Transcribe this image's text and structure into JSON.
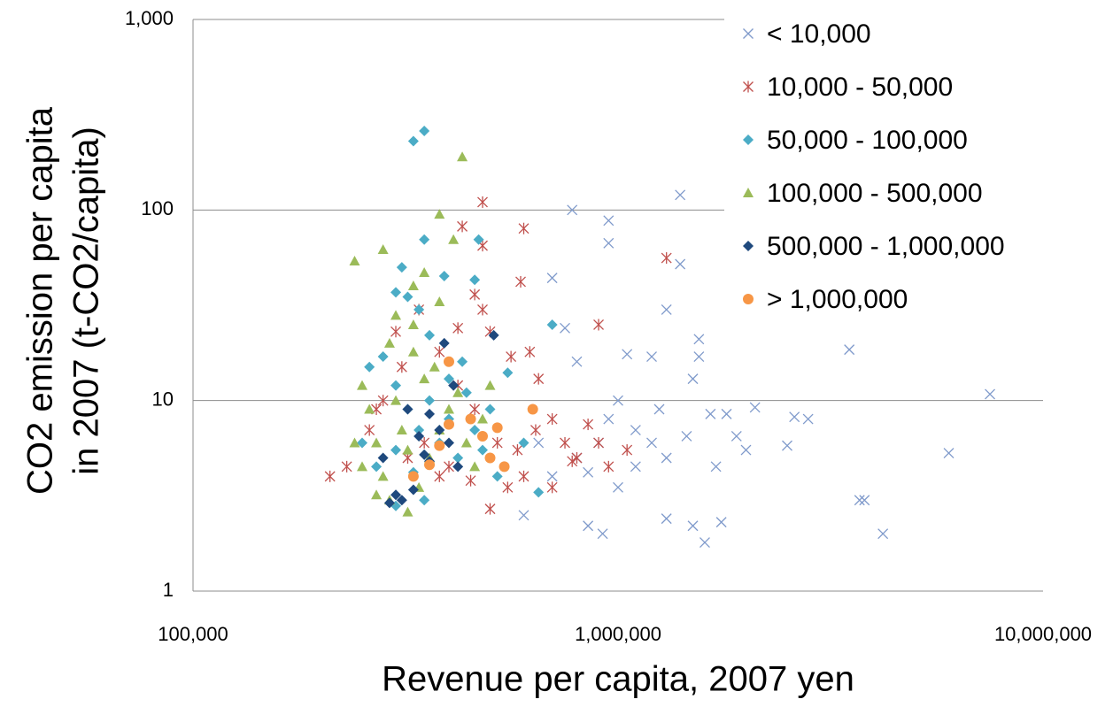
{
  "chart_data": {
    "type": "scatter",
    "xlabel": "Revenue per capita, 2007 yen",
    "ylabel": [
      "CO2 emission per capita",
      "in 2007 (t-CO2/capita)"
    ],
    "xscale": "log",
    "yscale": "log",
    "grid": true,
    "legend": "upper right",
    "xlim": [
      100000,
      10000000
    ],
    "xticks": [
      {
        "value": 100000,
        "label": "100,000"
      },
      {
        "value": 1000000,
        "label": "1,000,000"
      },
      {
        "value": 10000000,
        "label": "10,000,000"
      }
    ],
    "ylim": [
      1,
      1000
    ],
    "yticks": [
      1,
      10,
      100,
      {
        "value": 1000,
        "label": "1,000"
      }
    ],
    "series": [
      {
        "name": "< 10,000",
        "color": "#7f9acb",
        "marker": "x",
        "x": [
          1400000,
          780000,
          950000,
          950000,
          700000,
          1400000,
          1300000,
          3500000,
          7500000,
          6000000,
          4200000,
          3800000,
          3700000,
          2800000,
          2600000,
          2500000,
          2100000,
          2000000,
          1600000,
          920000,
          850000,
          600000,
          1550000,
          1550000,
          1500000,
          1200000,
          1050000,
          800000,
          750000,
          1000000,
          1100000,
          1200000,
          1300000,
          900000,
          800000,
          700000,
          1450000,
          1650000,
          1800000,
          1750000,
          1500000,
          1300000,
          1000000,
          1100000,
          850000,
          950000,
          1250000,
          1700000,
          1900000,
          650000
        ],
        "values": [
          120,
          100,
          88,
          67,
          44,
          52,
          30,
          18.5,
          10.8,
          5.3,
          2.0,
          3.0,
          3.0,
          8,
          8.2,
          5.8,
          9.2,
          5.5,
          1.8,
          2.0,
          2.2,
          2.5,
          21,
          17,
          13,
          17,
          17.5,
          16,
          24,
          10,
          7,
          6,
          5,
          6,
          5,
          4,
          6.5,
          8.5,
          8.5,
          2.3,
          2.2,
          2.4,
          3.5,
          4.5,
          4.2,
          8,
          9,
          4.5,
          6.5,
          6
        ]
      },
      {
        "name": "10,000 - 50,000",
        "color": "#c0504d",
        "marker": "asterisk",
        "x": [
          480000,
          600000,
          1300000,
          480000,
          430000,
          900000,
          590000,
          210000,
          230000,
          260000,
          280000,
          300000,
          340000,
          380000,
          420000,
          500000,
          560000,
          620000,
          650000,
          700000,
          750000,
          800000,
          850000,
          900000,
          600000,
          550000,
          500000,
          450000,
          400000,
          350000,
          320000,
          700000,
          780000,
          420000,
          460000,
          520000,
          580000,
          640000,
          480000,
          460000,
          1050000,
          950000,
          270000,
          380000,
          310000
        ],
        "values": [
          110,
          80,
          56,
          65,
          82,
          25,
          42,
          4,
          4.5,
          7,
          10,
          23,
          30,
          18,
          24,
          23,
          17,
          18,
          13,
          8,
          6,
          5,
          7.5,
          6,
          4,
          3.5,
          2.7,
          3.8,
          4.5,
          6,
          5,
          3.5,
          4.8,
          12,
          9,
          6,
          5.5,
          7,
          30,
          36,
          5.5,
          4.5,
          9,
          4.0,
          15
        ]
      },
      {
        "name": "50,000 - 100,000",
        "color": "#4bacc6",
        "marker": "diamond",
        "x": [
          330000,
          350000,
          350000,
          470000,
          390000,
          300000,
          700000,
          460000,
          310000,
          320000,
          340000,
          260000,
          280000,
          300000,
          320000,
          340000,
          360000,
          380000,
          400000,
          420000,
          440000,
          460000,
          500000,
          550000,
          600000,
          650000,
          300000,
          350000,
          250000,
          270000,
          300000,
          330000,
          400000,
          430000,
          480000,
          520000,
          360000
        ],
        "values": [
          230,
          260,
          70,
          70,
          45,
          37,
          25,
          43,
          50,
          35,
          30,
          15,
          17,
          12,
          9,
          7,
          10,
          6,
          8,
          5,
          11,
          7,
          9,
          14,
          6,
          3.3,
          2.8,
          3,
          6,
          4.5,
          5.5,
          4.2,
          13,
          16,
          5.5,
          4,
          22
        ]
      },
      {
        "name": "100,000 - 500,000",
        "color": "#9bbb59",
        "marker": "triangle",
        "x": [
          430000,
          240000,
          380000,
          410000,
          280000,
          350000,
          330000,
          380000,
          300000,
          290000,
          330000,
          250000,
          260000,
          270000,
          280000,
          290000,
          320000,
          340000,
          360000,
          380000,
          400000,
          420000,
          440000,
          460000,
          480000,
          300000,
          310000,
          320000,
          350000,
          370000,
          250000,
          270000,
          240000,
          500000,
          330000
        ],
        "values": [
          190,
          54,
          95,
          70,
          62,
          47,
          40,
          33,
          28,
          20,
          18,
          12,
          9,
          6,
          4,
          3,
          2.6,
          3.5,
          5,
          7,
          9,
          11,
          6,
          4.5,
          8,
          10,
          7,
          5.5,
          13,
          15,
          4.5,
          3.2,
          6,
          12,
          25
        ]
      },
      {
        "name": "500,000 - 1,000,000",
        "color": "#1f497d",
        "marker": "diamond",
        "x": [
          510000,
          390000,
          290000,
          310000,
          300000,
          330000,
          350000,
          360000,
          380000,
          400000,
          410000,
          340000,
          320000,
          360000,
          420000,
          280000
        ],
        "values": [
          22,
          20,
          2.9,
          3.0,
          3.2,
          3.4,
          5.2,
          8.5,
          7,
          6,
          12,
          6.5,
          9,
          4.8,
          4.5,
          5
        ]
      },
      {
        "name": "> 1,000,000",
        "color": "#f79646",
        "marker": "circle",
        "x": [
          400000,
          630000,
          400000,
          380000,
          500000,
          480000,
          330000,
          540000,
          360000,
          450000,
          520000
        ],
        "values": [
          16,
          9,
          7.5,
          5.8,
          5.0,
          6.5,
          4.0,
          4.5,
          4.6,
          8.0,
          7.2
        ]
      }
    ]
  }
}
